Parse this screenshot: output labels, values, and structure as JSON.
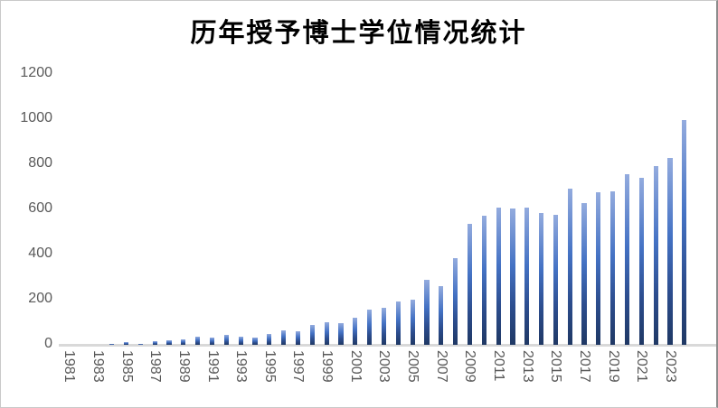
{
  "chart_data": {
    "type": "bar",
    "title": "历年授予博士学位情况统计",
    "xlabel": "",
    "ylabel": "",
    "ylim": [
      0,
      1200
    ],
    "y_ticks": [
      0,
      200,
      400,
      600,
      800,
      1000,
      1200
    ],
    "grid": false,
    "legend": "none",
    "categories": [
      1981,
      1982,
      1983,
      1984,
      1985,
      1986,
      1987,
      1988,
      1989,
      1990,
      1991,
      1992,
      1993,
      1994,
      1995,
      1996,
      1997,
      1998,
      1999,
      2000,
      2001,
      2002,
      2003,
      2004,
      2005,
      2006,
      2007,
      2008,
      2009,
      2010,
      2011,
      2012,
      2013,
      2014,
      2015,
      2016,
      2017,
      2018,
      2019,
      2020,
      2021,
      2022,
      2023,
      2024
    ],
    "values": [
      0,
      0,
      0,
      6,
      11,
      6,
      17,
      22,
      25,
      35,
      32,
      43,
      36,
      33,
      50,
      65,
      60,
      88,
      100,
      95,
      120,
      155,
      166,
      193,
      200,
      290,
      262,
      383,
      538,
      573,
      610,
      605,
      609,
      584,
      578,
      694,
      630,
      676,
      681,
      756,
      741,
      793,
      827,
      997
    ],
    "x_tick_labels": [
      "1981",
      "1983",
      "1985",
      "1987",
      "1989",
      "1991",
      "1993",
      "1995",
      "1997",
      "1999",
      "2001",
      "2003",
      "2005",
      "2007",
      "2009",
      "2011",
      "2013",
      "2015",
      "2017",
      "2019",
      "2021",
      "2023"
    ],
    "colors": {
      "bar_gradient_top": "#93ABDE",
      "bar_gradient_mid": "#4472C4",
      "bar_gradient_bottom": "#1F3864",
      "axis_line": "#D9D9D9",
      "tick_label": "#595959",
      "title": "#000000",
      "background": "#FFFFFF"
    }
  }
}
